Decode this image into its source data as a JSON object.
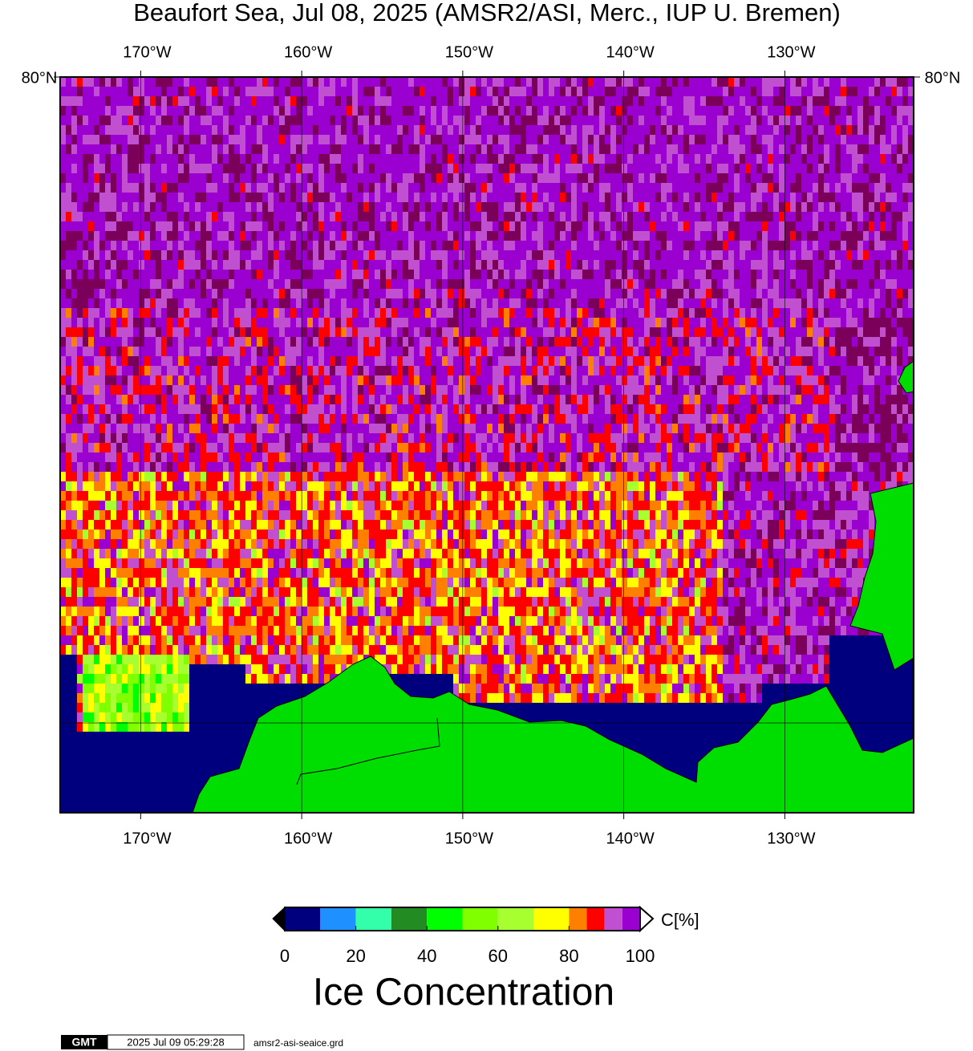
{
  "title": "Beaufort Sea, Jul 08, 2025 (AMSR2/ASI, Merc., IUP U. Bremen)",
  "map": {
    "lon_range": [
      -175,
      -122
    ],
    "lat_range": [
      68,
      80
    ],
    "lon_ticks": [
      {
        "value": -170,
        "label": "170°W"
      },
      {
        "value": -160,
        "label": "160°W"
      },
      {
        "value": -150,
        "label": "150°W"
      },
      {
        "value": -140,
        "label": "140°W"
      },
      {
        "value": -130,
        "label": "130°W"
      }
    ],
    "lat_ticks": [
      {
        "value": 80,
        "label": "80°N"
      }
    ],
    "lat_gridlines": [
      70
    ]
  },
  "colorbar": {
    "bins": [
      0,
      10,
      20,
      30,
      40,
      50,
      60,
      70,
      80,
      85,
      90,
      95,
      100
    ],
    "colors": [
      "#00007f",
      "#1e90ff",
      "#33ffaa",
      "#228b22",
      "#00ff00",
      "#80ff00",
      "#a8ff30",
      "#ffff00",
      "#ff8000",
      "#ff0000",
      "#c050d0",
      "#9a00d0"
    ],
    "ticks": [
      0,
      20,
      40,
      60,
      80,
      100
    ],
    "unit": "C[%]",
    "title": "Ice Concentration"
  },
  "footer": {
    "logo": "GMT",
    "timestamp": "2025 Jul 09 05:29:28",
    "file": "amsr2-asi-seaice.grd"
  }
}
